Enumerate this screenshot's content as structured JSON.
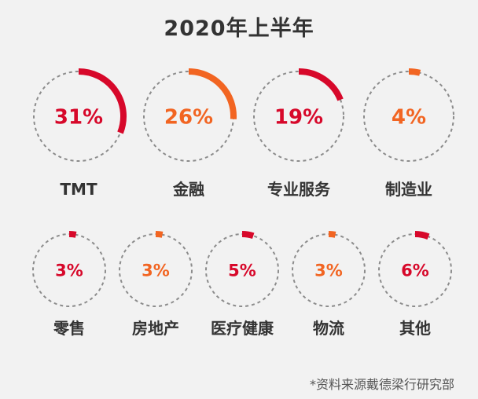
{
  "title": "2020年上半年",
  "footnote": "*资料来源戴德梁行研究部",
  "colors": {
    "red": "#d7082a",
    "orange": "#f26522",
    "dash": "#8c8c8c",
    "label": "#333333"
  },
  "chart_data": {
    "type": "donut-grid",
    "title": "2020年上半年",
    "unit": "%",
    "items": [
      {
        "label": "TMT",
        "value": 31,
        "display": "31%",
        "color": "#d7082a"
      },
      {
        "label": "金融",
        "value": 26,
        "display": "26%",
        "color": "#f26522"
      },
      {
        "label": "专业服务",
        "value": 19,
        "display": "19%",
        "color": "#d7082a"
      },
      {
        "label": "制造业",
        "value": 4,
        "display": "4%",
        "color": "#f26522"
      },
      {
        "label": "零售",
        "value": 3,
        "display": "3%",
        "color": "#d7082a"
      },
      {
        "label": "房地产",
        "value": 3,
        "display": "3%",
        "color": "#f26522"
      },
      {
        "label": "医疗健康",
        "value": 5,
        "display": "5%",
        "color": "#d7082a"
      },
      {
        "label": "物流",
        "value": 3,
        "display": "3%",
        "color": "#f26522"
      },
      {
        "label": "其他",
        "value": 6,
        "display": "6%",
        "color": "#d7082a"
      }
    ]
  }
}
